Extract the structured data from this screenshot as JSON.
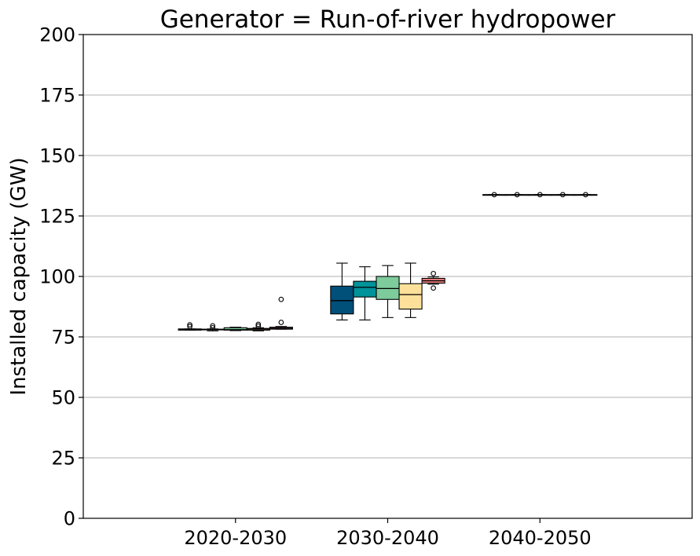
{
  "chart_data": {
    "type": "boxplot",
    "title": "Generator = Run-of-river hydropower",
    "xlabel": "",
    "ylabel": "Installed capacity (GW)",
    "ylim": [
      0,
      200
    ],
    "yticks": [
      0,
      25,
      50,
      75,
      100,
      125,
      150,
      175,
      200
    ],
    "grid": "y",
    "categories": [
      "2020-2030",
      "2030-2040",
      "2040-2050"
    ],
    "series": [
      {
        "color": "#00507a",
        "boxes": [
          {
            "min": 77.8,
            "q1": 77.8,
            "median": 78.0,
            "q3": 78.3,
            "max": 78.3,
            "outliers": [
              79.3,
              80.0
            ]
          },
          {
            "min": 82,
            "q1": 84.5,
            "median": 90,
            "q3": 96,
            "max": 105.5,
            "outliers": []
          },
          {
            "min": 133.8,
            "q1": 133.8,
            "median": 133.8,
            "q3": 133.8,
            "max": 133.8,
            "outliers": [
              133.8
            ]
          }
        ]
      },
      {
        "color": "#00939a",
        "boxes": [
          {
            "min": 77.5,
            "q1": 77.9,
            "median": 78.0,
            "q3": 78.2,
            "max": 78.3,
            "outliers": [
              78.8,
              79.6
            ]
          },
          {
            "min": 82,
            "q1": 91.5,
            "median": 95.5,
            "q3": 98,
            "max": 104,
            "outliers": []
          },
          {
            "min": 133.8,
            "q1": 133.8,
            "median": 133.8,
            "q3": 133.8,
            "max": 133.8,
            "outliers": [
              133.8
            ]
          }
        ]
      },
      {
        "color": "#7ecb9c",
        "boxes": [
          {
            "min": 77.6,
            "q1": 77.8,
            "median": 78.0,
            "q3": 78.8,
            "max": 79.0,
            "outliers": []
          },
          {
            "min": 83,
            "q1": 90.5,
            "median": 95,
            "q3": 100,
            "max": 104.5,
            "outliers": []
          },
          {
            "min": 133.8,
            "q1": 133.8,
            "median": 133.8,
            "q3": 133.8,
            "max": 133.8,
            "outliers": [
              133.8
            ]
          }
        ]
      },
      {
        "color": "#fde19b",
        "boxes": [
          {
            "min": 77.5,
            "q1": 77.8,
            "median": 78.2,
            "q3": 78.5,
            "max": 78.8,
            "outliers": [
              79.5,
              80.2
            ]
          },
          {
            "min": 83,
            "q1": 86.5,
            "median": 92.5,
            "q3": 97,
            "max": 105.5,
            "outliers": []
          },
          {
            "min": 133.8,
            "q1": 133.8,
            "median": 133.8,
            "q3": 133.8,
            "max": 133.8,
            "outliers": [
              133.8
            ]
          }
        ]
      },
      {
        "color": "#f08080",
        "boxes": [
          {
            "min": 78.2,
            "q1": 78.2,
            "median": 78.6,
            "q3": 79.0,
            "max": 79.3,
            "outliers": [
              81.0,
              90.5
            ]
          },
          {
            "min": 96.8,
            "q1": 97.2,
            "median": 98.2,
            "q3": 99.2,
            "max": 99.8,
            "outliers": [
              95.2,
              101.2
            ]
          },
          {
            "min": 133.8,
            "q1": 133.8,
            "median": 133.8,
            "q3": 133.8,
            "max": 133.8,
            "outliers": [
              133.8
            ]
          }
        ]
      }
    ]
  }
}
